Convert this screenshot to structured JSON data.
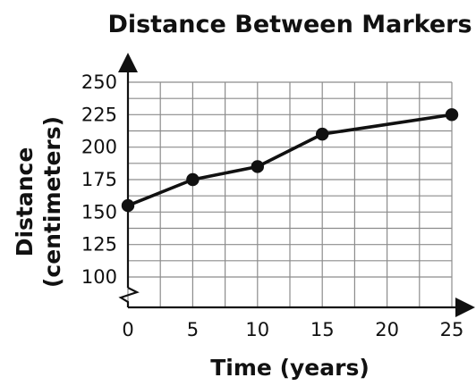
{
  "chart_data": {
    "type": "line",
    "title": "Distance Between Markers",
    "xlabel": "Time (years)",
    "ylabel": [
      "Distance",
      "(centimeters)"
    ],
    "x_ticks": [
      0,
      5,
      10,
      15,
      20,
      25
    ],
    "y_ticks": [
      100,
      125,
      150,
      175,
      200,
      225,
      250
    ],
    "xlim": [
      0,
      25
    ],
    "ylim": [
      100,
      250
    ],
    "y_axis_break": true,
    "grid": true,
    "x_minor_step": 2.5,
    "y_minor_step": 12.5,
    "x": [
      0,
      5,
      10,
      15,
      25
    ],
    "y": [
      155,
      175,
      185,
      210,
      225
    ],
    "marker": "filled-circle",
    "line_color": "#111111"
  }
}
